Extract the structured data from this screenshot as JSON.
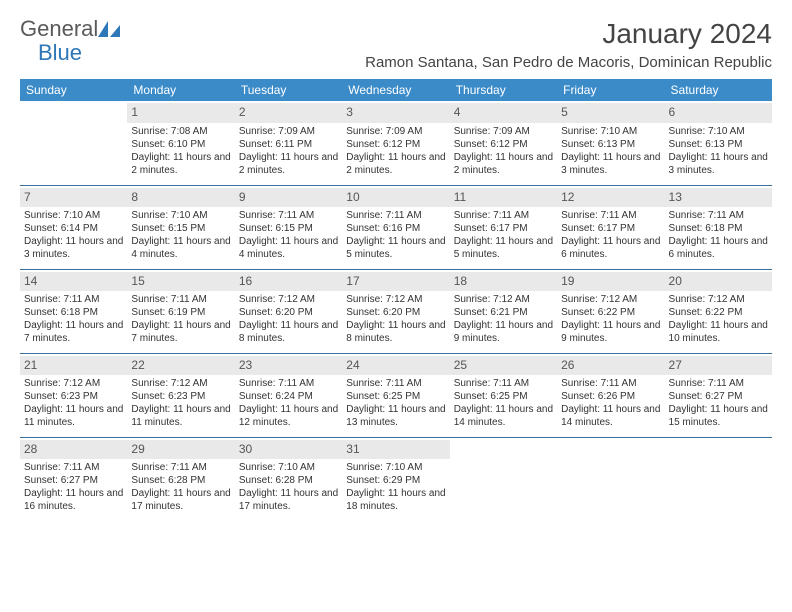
{
  "logo": {
    "general": "General",
    "blue": "Blue"
  },
  "title": "January 2024",
  "location": "Ramon Santana, San Pedro de Macoris, Dominican Republic",
  "colors": {
    "header_bg": "#3b8bc9",
    "header_text": "#ffffff",
    "daynum_bg": "#e9e9e9",
    "row_divider": "#3b6ea0",
    "logo_general": "#5a5a5a",
    "logo_blue": "#2e77b8"
  },
  "weekdays": [
    "Sunday",
    "Monday",
    "Tuesday",
    "Wednesday",
    "Thursday",
    "Friday",
    "Saturday"
  ],
  "weeks": [
    [
      {
        "day": "",
        "lines": []
      },
      {
        "day": "1",
        "lines": [
          "Sunrise: 7:08 AM",
          "Sunset: 6:10 PM",
          "Daylight: 11 hours and 2 minutes."
        ]
      },
      {
        "day": "2",
        "lines": [
          "Sunrise: 7:09 AM",
          "Sunset: 6:11 PM",
          "Daylight: 11 hours and 2 minutes."
        ]
      },
      {
        "day": "3",
        "lines": [
          "Sunrise: 7:09 AM",
          "Sunset: 6:12 PM",
          "Daylight: 11 hours and 2 minutes."
        ]
      },
      {
        "day": "4",
        "lines": [
          "Sunrise: 7:09 AM",
          "Sunset: 6:12 PM",
          "Daylight: 11 hours and 2 minutes."
        ]
      },
      {
        "day": "5",
        "lines": [
          "Sunrise: 7:10 AM",
          "Sunset: 6:13 PM",
          "Daylight: 11 hours and 3 minutes."
        ]
      },
      {
        "day": "6",
        "lines": [
          "Sunrise: 7:10 AM",
          "Sunset: 6:13 PM",
          "Daylight: 11 hours and 3 minutes."
        ]
      }
    ],
    [
      {
        "day": "7",
        "lines": [
          "Sunrise: 7:10 AM",
          "Sunset: 6:14 PM",
          "Daylight: 11 hours and 3 minutes."
        ]
      },
      {
        "day": "8",
        "lines": [
          "Sunrise: 7:10 AM",
          "Sunset: 6:15 PM",
          "Daylight: 11 hours and 4 minutes."
        ]
      },
      {
        "day": "9",
        "lines": [
          "Sunrise: 7:11 AM",
          "Sunset: 6:15 PM",
          "Daylight: 11 hours and 4 minutes."
        ]
      },
      {
        "day": "10",
        "lines": [
          "Sunrise: 7:11 AM",
          "Sunset: 6:16 PM",
          "Daylight: 11 hours and 5 minutes."
        ]
      },
      {
        "day": "11",
        "lines": [
          "Sunrise: 7:11 AM",
          "Sunset: 6:17 PM",
          "Daylight: 11 hours and 5 minutes."
        ]
      },
      {
        "day": "12",
        "lines": [
          "Sunrise: 7:11 AM",
          "Sunset: 6:17 PM",
          "Daylight: 11 hours and 6 minutes."
        ]
      },
      {
        "day": "13",
        "lines": [
          "Sunrise: 7:11 AM",
          "Sunset: 6:18 PM",
          "Daylight: 11 hours and 6 minutes."
        ]
      }
    ],
    [
      {
        "day": "14",
        "lines": [
          "Sunrise: 7:11 AM",
          "Sunset: 6:18 PM",
          "Daylight: 11 hours and 7 minutes."
        ]
      },
      {
        "day": "15",
        "lines": [
          "Sunrise: 7:11 AM",
          "Sunset: 6:19 PM",
          "Daylight: 11 hours and 7 minutes."
        ]
      },
      {
        "day": "16",
        "lines": [
          "Sunrise: 7:12 AM",
          "Sunset: 6:20 PM",
          "Daylight: 11 hours and 8 minutes."
        ]
      },
      {
        "day": "17",
        "lines": [
          "Sunrise: 7:12 AM",
          "Sunset: 6:20 PM",
          "Daylight: 11 hours and 8 minutes."
        ]
      },
      {
        "day": "18",
        "lines": [
          "Sunrise: 7:12 AM",
          "Sunset: 6:21 PM",
          "Daylight: 11 hours and 9 minutes."
        ]
      },
      {
        "day": "19",
        "lines": [
          "Sunrise: 7:12 AM",
          "Sunset: 6:22 PM",
          "Daylight: 11 hours and 9 minutes."
        ]
      },
      {
        "day": "20",
        "lines": [
          "Sunrise: 7:12 AM",
          "Sunset: 6:22 PM",
          "Daylight: 11 hours and 10 minutes."
        ]
      }
    ],
    [
      {
        "day": "21",
        "lines": [
          "Sunrise: 7:12 AM",
          "Sunset: 6:23 PM",
          "Daylight: 11 hours and 11 minutes."
        ]
      },
      {
        "day": "22",
        "lines": [
          "Sunrise: 7:12 AM",
          "Sunset: 6:23 PM",
          "Daylight: 11 hours and 11 minutes."
        ]
      },
      {
        "day": "23",
        "lines": [
          "Sunrise: 7:11 AM",
          "Sunset: 6:24 PM",
          "Daylight: 11 hours and 12 minutes."
        ]
      },
      {
        "day": "24",
        "lines": [
          "Sunrise: 7:11 AM",
          "Sunset: 6:25 PM",
          "Daylight: 11 hours and 13 minutes."
        ]
      },
      {
        "day": "25",
        "lines": [
          "Sunrise: 7:11 AM",
          "Sunset: 6:25 PM",
          "Daylight: 11 hours and 14 minutes."
        ]
      },
      {
        "day": "26",
        "lines": [
          "Sunrise: 7:11 AM",
          "Sunset: 6:26 PM",
          "Daylight: 11 hours and 14 minutes."
        ]
      },
      {
        "day": "27",
        "lines": [
          "Sunrise: 7:11 AM",
          "Sunset: 6:27 PM",
          "Daylight: 11 hours and 15 minutes."
        ]
      }
    ],
    [
      {
        "day": "28",
        "lines": [
          "Sunrise: 7:11 AM",
          "Sunset: 6:27 PM",
          "Daylight: 11 hours and 16 minutes."
        ]
      },
      {
        "day": "29",
        "lines": [
          "Sunrise: 7:11 AM",
          "Sunset: 6:28 PM",
          "Daylight: 11 hours and 17 minutes."
        ]
      },
      {
        "day": "30",
        "lines": [
          "Sunrise: 7:10 AM",
          "Sunset: 6:28 PM",
          "Daylight: 11 hours and 17 minutes."
        ]
      },
      {
        "day": "31",
        "lines": [
          "Sunrise: 7:10 AM",
          "Sunset: 6:29 PM",
          "Daylight: 11 hours and 18 minutes."
        ]
      },
      {
        "day": "",
        "lines": []
      },
      {
        "day": "",
        "lines": []
      },
      {
        "day": "",
        "lines": []
      }
    ]
  ]
}
